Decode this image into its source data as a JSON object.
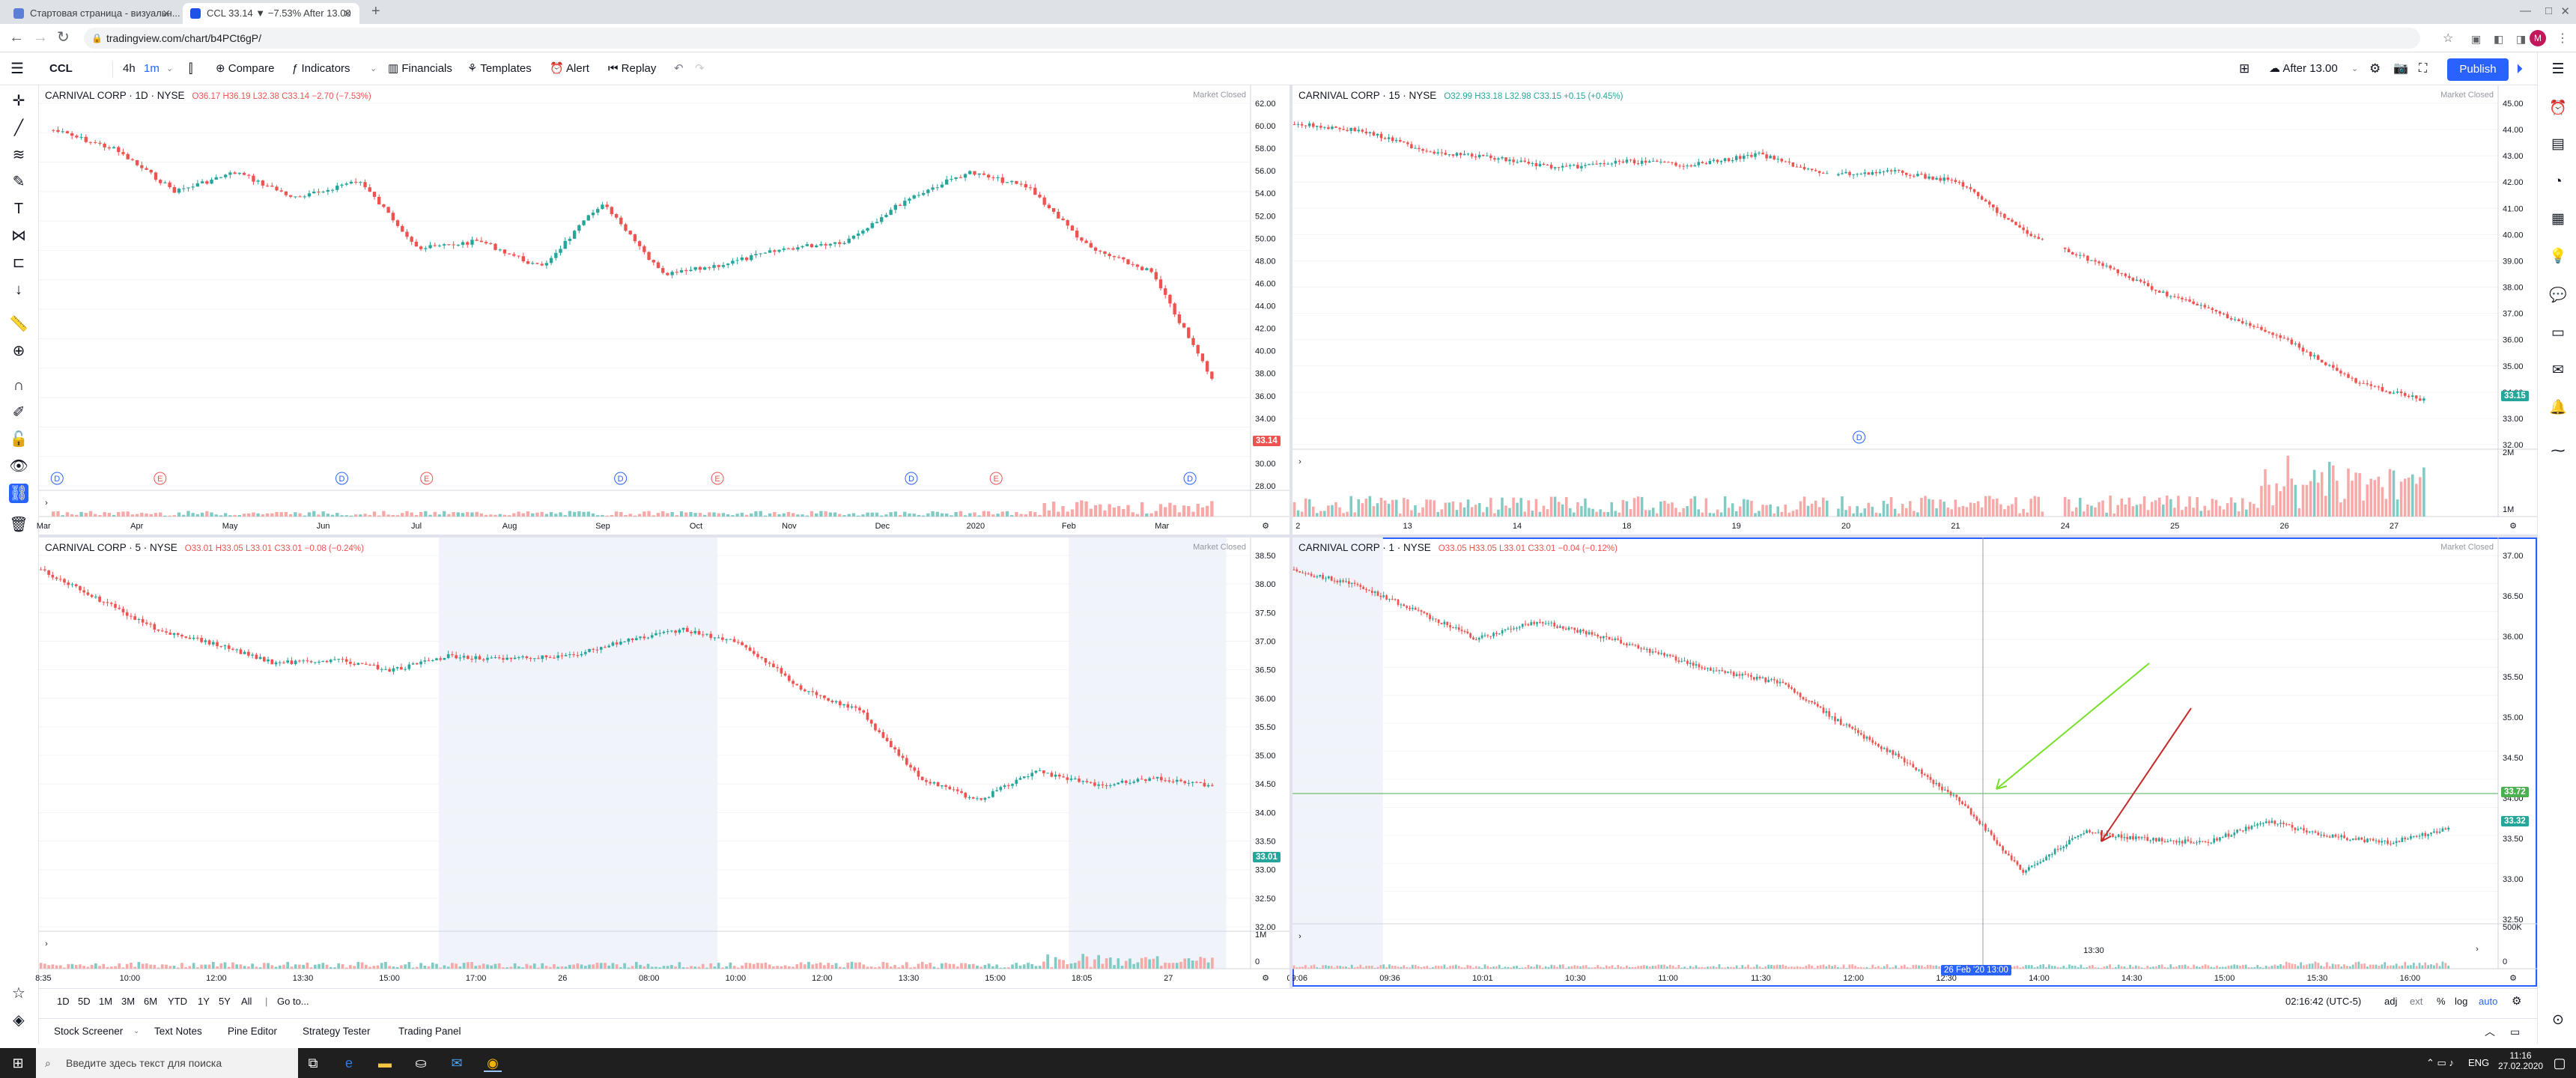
{
  "browser": {
    "tabs": [
      {
        "title": "Стартовая страница - визуальн...",
        "active": false
      },
      {
        "title": "CCL 33.14 ▼ −7.53% After 13.00",
        "active": true
      }
    ],
    "new_tab": "+",
    "url": "tradingview.com/chart/b4PCt6gP/",
    "icons": {
      "back": "back-arrow-icon",
      "forward": "forward-arrow-icon",
      "reload": "reload-icon",
      "lock": "lock-icon",
      "star": "star-icon",
      "profile_letter": "M"
    }
  },
  "toolbar": {
    "symbol": "CCL",
    "interval_4h": "4h",
    "interval_1m": "1m",
    "compare": "Compare",
    "indicators": "Indicators",
    "financials": "Financials",
    "templates": "Templates",
    "alert": "Alert",
    "replay": "Replay",
    "layout_name": "After 13.00",
    "publish": "Publish"
  },
  "panes": {
    "tl": {
      "title": "CARNIVAL CORP · 1D · NYSE",
      "ohlc": "O36.17 H36.19 L32.38 C33.14 −2.70 (−7.53%)",
      "status": "Market Closed",
      "price_badge": "33.14",
      "price_axis": [
        "62.00",
        "60.00",
        "58.00",
        "56.00",
        "54.00",
        "52.00",
        "50.00",
        "48.00",
        "46.00",
        "44.00",
        "42.00",
        "40.00",
        "38.00",
        "36.00",
        "34.00",
        "32.00",
        "30.00",
        "28.00"
      ],
      "time_axis": [
        "Mar",
        "Apr",
        "May",
        "Jun",
        "Jul",
        "Aug",
        "Sep",
        "Oct",
        "Nov",
        "Dec",
        "2020",
        "Feb",
        "Mar"
      ],
      "event_markers": [
        "D",
        "E",
        "D",
        "E",
        "D",
        "E",
        "D",
        "E",
        "D"
      ]
    },
    "tr": {
      "title": "CARNIVAL CORP · 15 · NYSE",
      "ohlc": "O32.99 H33.18 L32.98 C33.15 +0.15 (+0.45%)",
      "status": "Market Closed",
      "price_badge": "33.15",
      "price_axis": [
        "45.00",
        "44.00",
        "43.00",
        "42.00",
        "41.00",
        "40.00",
        "39.00",
        "38.00",
        "37.00",
        "36.00",
        "35.00",
        "34.00",
        "33.00",
        "32.00"
      ],
      "volume_axis": [
        "2M",
        "1M"
      ],
      "time_axis": [
        "2",
        "13",
        "14",
        "18",
        "19",
        "20",
        "21",
        "24",
        "25",
        "26",
        "27"
      ],
      "event_markers": [
        "D"
      ]
    },
    "bl": {
      "title": "CARNIVAL CORP · 5 · NYSE",
      "ohlc": "O33.01 H33.05 L33.01 C33.01 −0.08 (−0.24%)",
      "status": "Market Closed",
      "price_badge": "33.01",
      "price_axis": [
        "38.50",
        "38.00",
        "37.50",
        "37.00",
        "36.50",
        "36.00",
        "35.50",
        "35.00",
        "34.50",
        "34.00",
        "33.50",
        "33.00",
        "32.50",
        "32.00"
      ],
      "volume_axis": [
        "1M",
        "0"
      ],
      "time_axis": [
        "8:35",
        "10:00",
        "12:00",
        "13:30",
        "15:00",
        "17:00",
        "26",
        "08:00",
        "10:00",
        "12:00",
        "13:30",
        "15:00",
        "18:05",
        "27"
      ]
    },
    "br": {
      "title": "CARNIVAL CORP · 1 · NYSE",
      "ohlc": "O33.05 H33.05 L33.01 C33.01 −0.04 (−0.12%)",
      "status": "Market Closed",
      "price_badge_line": "33.72",
      "price_badge": "33.32",
      "price_axis": [
        "37.00",
        "36.50",
        "36.00",
        "35.50",
        "35.00",
        "34.50",
        "34.00",
        "33.50",
        "33.00",
        "32.50"
      ],
      "volume_axis": [
        "500K",
        "0"
      ],
      "time_axis": [
        "09:06",
        "09:36",
        "10:01",
        "10:30",
        "11:00",
        "11:30",
        "12:00",
        "12:30",
        "14:00",
        "14:30",
        "15:00",
        "15:30",
        "16:00"
      ],
      "time_axis_more": [
        "13:30"
      ],
      "crosshair_label": "26 Feb '20  13:00"
    }
  },
  "range_bar": {
    "ranges": [
      "1D",
      "5D",
      "1M",
      "3M",
      "6M",
      "YTD",
      "1Y",
      "5Y",
      "All"
    ],
    "goto": "Go to...",
    "clock": "02:16:42 (UTC-5)",
    "options": [
      "adj",
      "ext",
      "%",
      "log",
      "auto"
    ]
  },
  "bottom_panel": {
    "tabs": [
      "Stock Screener",
      "Text Notes",
      "Pine Editor",
      "Strategy Tester",
      "Trading Panel"
    ]
  },
  "taskbar": {
    "search_placeholder": "Введите здесь текст для поиска",
    "language": "ENG",
    "time": "11:16",
    "date": "27.02.2020"
  },
  "colors": {
    "up": "#26a69a",
    "down": "#ef5350",
    "accent": "#2962ff",
    "green_arrow": "#76e02a",
    "red_arrow": "#c62828",
    "line_badge": "#4caf50",
    "session_shade": "#f0f3fa"
  }
}
